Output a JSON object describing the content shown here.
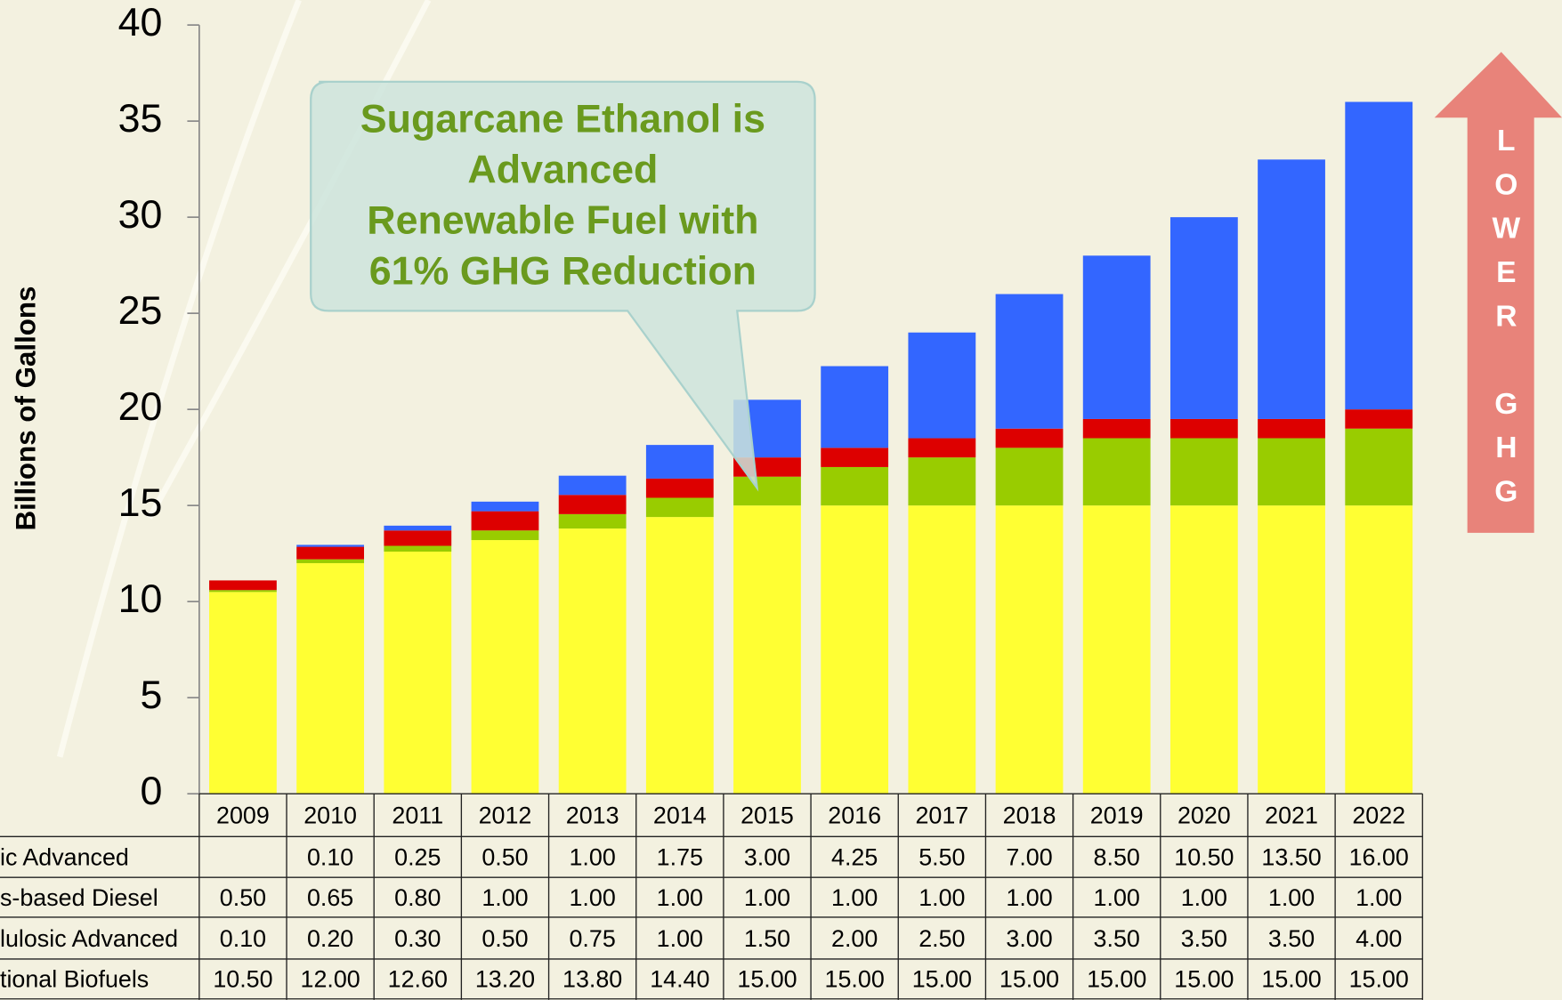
{
  "chart_data": {
    "type": "stacked_bar",
    "ylabel": "Billions of Gallons",
    "categories": [
      "2009",
      "2010",
      "2011",
      "2012",
      "2013",
      "2014",
      "2015",
      "2016",
      "2017",
      "2018",
      "2019",
      "2020",
      "2021",
      "2022"
    ],
    "series": [
      {
        "name": "ic Advanced",
        "color": "#3366ff",
        "values": [
          null,
          0.1,
          0.25,
          0.5,
          1,
          1.75,
          3,
          4.25,
          5.5,
          7,
          8.5,
          10.5,
          13.5,
          16
        ],
        "value_labels": [
          null,
          "0.10",
          "0.25",
          "0.50",
          "1.00",
          "1.75",
          "3.00",
          "4.25",
          "5.50",
          "7.00",
          "8.50",
          "10.50",
          "13.50",
          "16.00"
        ]
      },
      {
        "name": "s-based Diesel",
        "color": "#dd0000",
        "values": [
          0.5,
          0.65,
          0.8,
          1,
          1,
          1,
          1,
          1,
          1,
          1,
          1,
          1,
          1,
          1
        ],
        "value_labels": [
          "0.50",
          "0.65",
          "0.80",
          "1.00",
          "1.00",
          "1.00",
          "1.00",
          "1.00",
          "1.00",
          "1.00",
          "1.00",
          "1.00",
          "1.00",
          "1.00"
        ]
      },
      {
        "name": "lulosic Advanced",
        "color": "#99cc00",
        "values": [
          0.1,
          0.2,
          0.3,
          0.5,
          0.75,
          1,
          1.5,
          2,
          2.5,
          3,
          3.5,
          3.5,
          3.5,
          4
        ],
        "value_labels": [
          "0.10",
          "0.20",
          "0.30",
          "0.50",
          "0.75",
          "1.00",
          "1.50",
          "2.00",
          "2.50",
          "3.00",
          "3.50",
          "3.50",
          "3.50",
          "4.00"
        ]
      },
      {
        "name": "tional Biofuels",
        "color": "#ffff33",
        "values": [
          10.5,
          12,
          12.6,
          13.2,
          13.8,
          14.4,
          15,
          15,
          15,
          15,
          15,
          15,
          15,
          15
        ],
        "value_labels": [
          "10.50",
          "12.00",
          "12.60",
          "13.20",
          "13.80",
          "14.40",
          "15.00",
          "15.00",
          "15.00",
          "15.00",
          "15.00",
          "15.00",
          "15.00",
          "15.00"
        ]
      }
    ],
    "ylim": [
      0,
      40
    ],
    "yticks": [
      0,
      5,
      10,
      15,
      20,
      25,
      30,
      35,
      40
    ],
    "callout": [
      "Sugarcane Ethanol is",
      "Advanced",
      "Renewable Fuel with",
      "61% GHG Reduction"
    ],
    "arrow_text": "LOWER GHG"
  }
}
